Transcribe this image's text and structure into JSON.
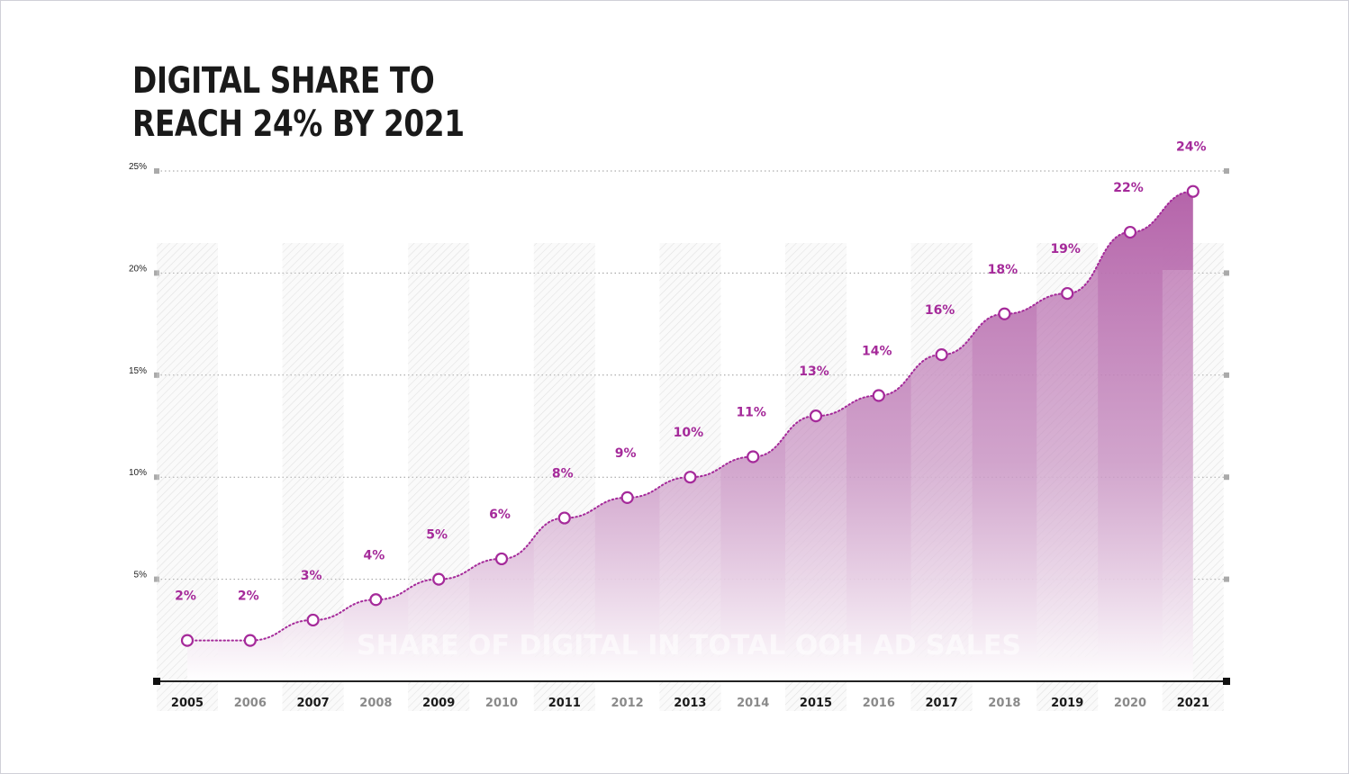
{
  "title_lines": [
    "DIGITAL SHARE TO",
    "REACH 24% BY 2021"
  ],
  "colors": {
    "accent": "#a52a9a",
    "area_top": "#b564aa",
    "line": "#a52a9a",
    "text": "#1a1a1a"
  },
  "chart_data": {
    "type": "area",
    "title": "DIGITAL SHARE TO REACH 24% BY 2021",
    "xlabel": "",
    "ylabel": "",
    "annotation": "SHARE OF DIGITAL IN TOTAL OOH AD SALES",
    "x": [
      "2005",
      "2006",
      "2007",
      "2008",
      "2009",
      "2010",
      "2011",
      "2012",
      "2013",
      "2014",
      "2015",
      "2016",
      "2017",
      "2018",
      "2019",
      "2020",
      "2021"
    ],
    "values": [
      2,
      2,
      3,
      4,
      5,
      6,
      8,
      9,
      10,
      11,
      13,
      14,
      16,
      18,
      19,
      22,
      24
    ],
    "data_labels": [
      "2%",
      "2%",
      "3%",
      "4%",
      "5%",
      "6%",
      "8%",
      "9%",
      "10%",
      "11%",
      "13%",
      "14%",
      "16%",
      "18%",
      "19%",
      "22%",
      "24%"
    ],
    "yticks": [
      5,
      10,
      15,
      20,
      25
    ],
    "ytick_labels": [
      "5%",
      "10%",
      "15%",
      "20%",
      "25%"
    ],
    "ylim": [
      0,
      25
    ],
    "grid": true
  }
}
